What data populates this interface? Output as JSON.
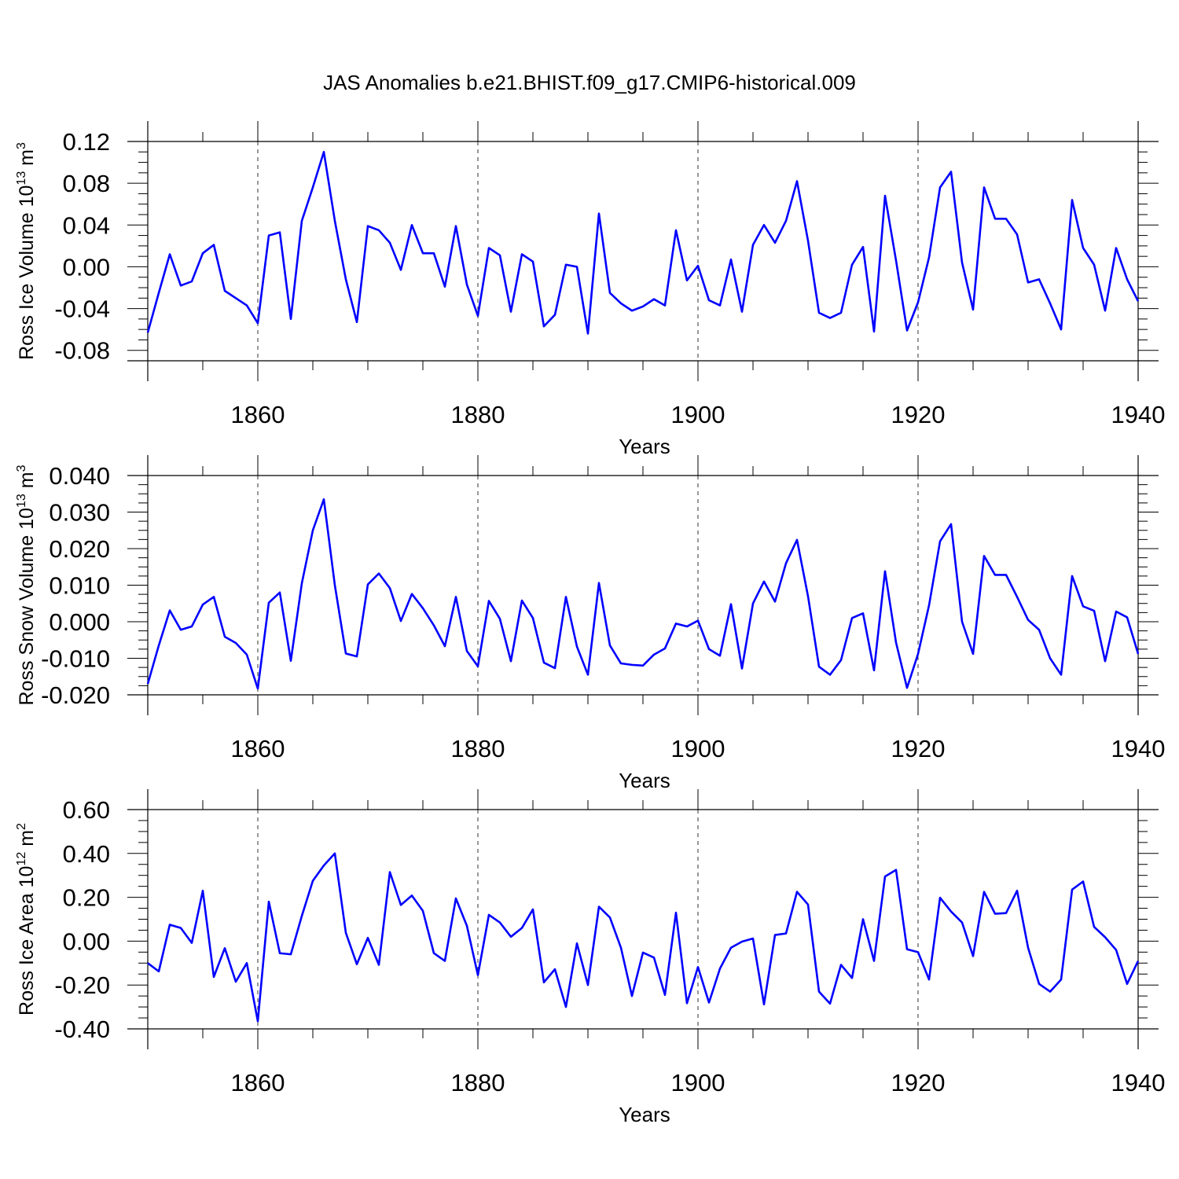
{
  "title": "JAS Anomalies b.e21.BHIST.f09_g17.CMIP6-historical.009",
  "line_color": "#0000ff",
  "chart_data": [
    {
      "type": "line",
      "series_name": "Ross Ice Volume",
      "ylabel": "Ross Ice Volume 10",
      "ylabel_exp": "13",
      "ylabel_unit": " m",
      "ylabel_unit_exp": "3",
      "xlabel": "Years",
      "xlim": [
        1850,
        1940
      ],
      "ylim": [
        -0.09,
        0.12
      ],
      "xticks": [
        1860,
        1880,
        1900,
        1920,
        1940
      ],
      "xtick_labels": [
        "1860",
        "1880",
        "1900",
        "1920",
        "1940"
      ],
      "yticks": [
        -0.08,
        -0.04,
        0.0,
        0.04,
        0.08,
        0.12
      ],
      "ytick_labels": [
        "-0.08",
        "-0.04",
        "0.00",
        "0.04",
        "0.08",
        "0.12"
      ],
      "grid_x_dashed": [
        1860,
        1880,
        1900,
        1920
      ],
      "x_start": 1850,
      "values": [
        -0.063,
        -0.025,
        0.012,
        -0.018,
        -0.014,
        0.013,
        0.021,
        -0.023,
        -0.03,
        -0.037,
        -0.054,
        0.03,
        0.033,
        -0.05,
        0.044,
        0.076,
        0.11,
        0.044,
        -0.012,
        -0.053,
        0.039,
        0.035,
        0.023,
        -0.003,
        0.04,
        0.013,
        0.013,
        -0.019,
        0.039,
        -0.017,
        -0.047,
        0.018,
        0.011,
        -0.043,
        0.012,
        0.005,
        -0.057,
        -0.046,
        0.002,
        0.0,
        -0.064,
        0.051,
        -0.025,
        -0.035,
        -0.042,
        -0.038,
        -0.031,
        -0.037,
        0.035,
        -0.013,
        0.001,
        -0.032,
        -0.037,
        0.007,
        -0.043,
        0.021,
        0.04,
        0.023,
        0.044,
        0.082,
        0.025,
        -0.044,
        -0.049,
        -0.044,
        0.002,
        0.019,
        -0.062,
        0.068,
        0.006,
        -0.061,
        -0.034,
        0.009,
        0.076,
        0.091,
        0.004,
        -0.041,
        0.076,
        0.046,
        0.046,
        0.031,
        -0.015,
        -0.012,
        -0.035,
        -0.06,
        0.064,
        0.018,
        0.002,
        -0.042,
        0.018,
        -0.012,
        -0.033
      ]
    },
    {
      "type": "line",
      "series_name": "Ross Snow Volume",
      "ylabel": "Ross Snow Volume 10",
      "ylabel_exp": "13",
      "ylabel_unit": " m",
      "ylabel_unit_exp": "3",
      "xlabel": "Years",
      "xlim": [
        1850,
        1940
      ],
      "ylim": [
        -0.02,
        0.04
      ],
      "xticks": [
        1860,
        1880,
        1900,
        1920,
        1940
      ],
      "xtick_labels": [
        "1860",
        "1880",
        "1900",
        "1920",
        "1940"
      ],
      "yticks": [
        -0.02,
        -0.01,
        0.0,
        0.01,
        0.02,
        0.03,
        0.04
      ],
      "ytick_labels": [
        "-0.020",
        "-0.010",
        "0.000",
        "0.010",
        "0.020",
        "0.030",
        "0.040"
      ],
      "grid_x_dashed": [
        1860,
        1880,
        1900,
        1920
      ],
      "x_start": 1850,
      "values": [
        -0.017,
        -0.0065,
        0.0031,
        -0.0022,
        -0.0013,
        0.0047,
        0.0068,
        -0.0041,
        -0.0058,
        -0.009,
        -0.0183,
        0.0052,
        0.008,
        -0.0107,
        0.0105,
        0.025,
        0.0335,
        0.01,
        -0.0087,
        -0.0095,
        0.0102,
        0.0132,
        0.0092,
        0.0002,
        0.0076,
        0.0037,
        -0.001,
        -0.0067,
        0.0068,
        -0.008,
        -0.0122,
        0.0057,
        0.0008,
        -0.0108,
        0.0058,
        0.001,
        -0.0112,
        -0.0127,
        0.0068,
        -0.0068,
        -0.0145,
        0.0106,
        -0.0065,
        -0.0114,
        -0.0118,
        -0.012,
        -0.009,
        -0.0073,
        -0.0005,
        -0.0013,
        0.0003,
        -0.0075,
        -0.0093,
        0.0048,
        -0.0128,
        0.005,
        0.011,
        0.0055,
        0.016,
        0.0224,
        0.007,
        -0.0123,
        -0.0145,
        -0.0105,
        0.001,
        0.0023,
        -0.0133,
        0.0138,
        -0.0057,
        -0.0181,
        -0.0088,
        0.0045,
        0.022,
        0.0267,
        0.0,
        -0.0088,
        0.018,
        0.0128,
        0.0128,
        0.0068,
        0.0005,
        -0.0022,
        -0.01,
        -0.0145,
        0.0125,
        0.0042,
        0.003,
        -0.0108,
        0.0028,
        0.0012,
        -0.0088
      ]
    },
    {
      "type": "line",
      "series_name": "Ross Ice Area",
      "ylabel": "Ross Ice Area 10",
      "ylabel_exp": "12",
      "ylabel_unit": " m",
      "ylabel_unit_exp": "2",
      "xlabel": "Years",
      "xlim": [
        1850,
        1940
      ],
      "ylim": [
        -0.4,
        0.6
      ],
      "xticks": [
        1860,
        1880,
        1900,
        1920,
        1940
      ],
      "xtick_labels": [
        "1860",
        "1880",
        "1900",
        "1920",
        "1940"
      ],
      "yticks": [
        -0.4,
        -0.2,
        0.0,
        0.2,
        0.4,
        0.6
      ],
      "ytick_labels": [
        "-0.40",
        "-0.20",
        "0.00",
        "0.20",
        "0.40",
        "0.60"
      ],
      "grid_x_dashed": [
        1860,
        1880,
        1900,
        1920
      ],
      "x_start": 1850,
      "values": [
        -0.1,
        -0.138,
        0.075,
        0.06,
        -0.008,
        0.23,
        -0.163,
        -0.032,
        -0.185,
        -0.1,
        -0.365,
        0.18,
        -0.055,
        -0.06,
        0.115,
        0.275,
        0.345,
        0.4,
        0.038,
        -0.105,
        0.015,
        -0.108,
        0.315,
        0.165,
        0.208,
        0.138,
        -0.055,
        -0.09,
        0.195,
        0.07,
        -0.155,
        0.12,
        0.085,
        0.02,
        0.06,
        0.145,
        -0.188,
        -0.128,
        -0.3,
        -0.01,
        -0.2,
        0.157,
        0.108,
        -0.03,
        -0.25,
        -0.052,
        -0.075,
        -0.245,
        0.13,
        -0.283,
        -0.118,
        -0.28,
        -0.125,
        -0.03,
        -0.002,
        0.012,
        -0.288,
        0.028,
        0.035,
        0.225,
        0.167,
        -0.23,
        -0.285,
        -0.108,
        -0.168,
        0.1,
        -0.09,
        0.295,
        0.325,
        -0.037,
        -0.05,
        -0.175,
        0.198,
        0.135,
        0.085,
        -0.068,
        0.225,
        0.125,
        0.128,
        0.23,
        -0.03,
        -0.195,
        -0.23,
        -0.175,
        0.235,
        0.272,
        0.065,
        0.018,
        -0.04,
        -0.195,
        -0.09
      ]
    }
  ]
}
